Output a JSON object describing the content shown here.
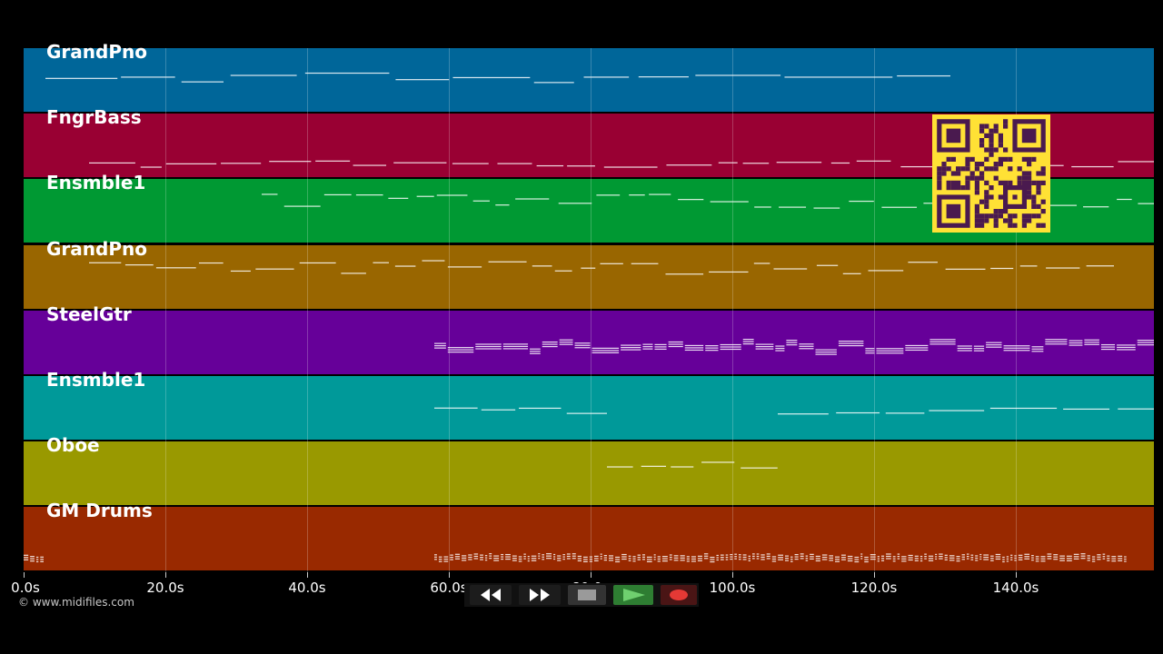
{
  "tracks": [
    {
      "name": "GrandPno",
      "color": "#006699"
    },
    {
      "name": "FngrBass",
      "color": "#990033"
    },
    {
      "name": "Ensmble1",
      "color": "#009933"
    },
    {
      "name": "GrandPno",
      "color": "#996600"
    },
    {
      "name": "SteelGtr",
      "color": "#660099"
    },
    {
      "name": "Ensmble1",
      "color": "#009999"
    },
    {
      "name": "Oboe",
      "color": "#999900"
    },
    {
      "name": "GM Drums",
      "color": "#992900"
    }
  ],
  "axis": {
    "max_seconds": 159,
    "ticks": [
      "0.0s",
      "20.0s",
      "40.0s",
      "60.0s",
      "80.0s",
      "100.0s",
      "120.0s",
      "140.0s"
    ]
  },
  "credit": "© www.midifiles.com",
  "controls": [
    "rewind-icon",
    "fast-forward-icon",
    "stop-icon",
    "play-icon",
    "record-icon"
  ],
  "colors": {
    "qr_bg": "#ffe135",
    "qr_fg": "#4a1a4f",
    "play": "#4caf50",
    "record": "#e53935"
  }
}
